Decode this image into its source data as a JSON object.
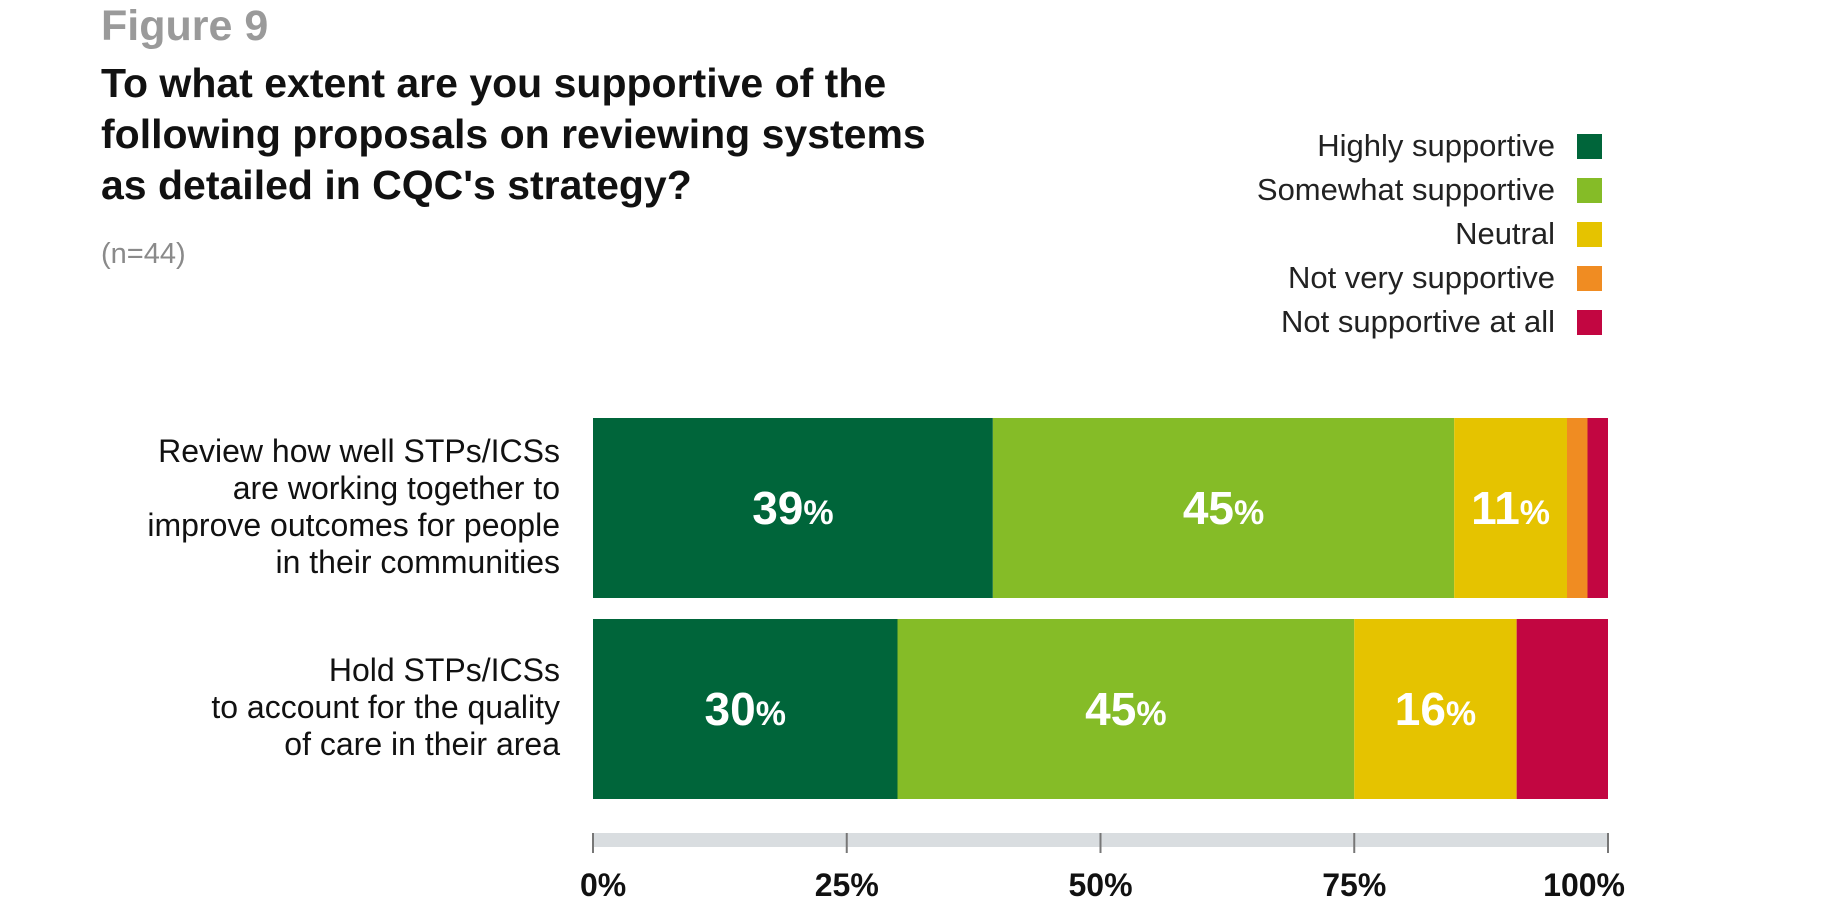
{
  "figure_label": "Figure 9",
  "title_lines": [
    "To what extent are you supportive of the",
    "following proposals on reviewing systems",
    "as detailed in CQC's strategy?"
  ],
  "sample_size": "(n=44)",
  "chart_data": {
    "type": "bar",
    "orientation": "horizontal",
    "stacked": true,
    "categories": [
      "Review how well STPs/ICSs are working together to improve outcomes for people in their communities",
      "Hold STPs/ICSs to account for the quality of care in their area"
    ],
    "category_label_lines": [
      [
        "Review how well STPs/ICSs",
        "are working together to",
        "improve outcomes for people",
        "in their communities"
      ],
      [
        "Hold STPs/ICSs",
        "to account for the quality",
        "of care in their area"
      ]
    ],
    "series": [
      {
        "name": "Highly supportive",
        "color": "#00653a",
        "values": [
          39,
          30
        ]
      },
      {
        "name": "Somewhat supportive",
        "color": "#85bc27",
        "values": [
          45,
          45
        ]
      },
      {
        "name": "Neutral",
        "color": "#e5c300",
        "values": [
          11,
          16
        ]
      },
      {
        "name": "Not very supportive",
        "color": "#f08c22",
        "values": [
          2,
          0
        ]
      },
      {
        "name": "Not supportive at all",
        "color": "#c20641",
        "values": [
          2,
          9
        ]
      }
    ],
    "data_labels": [
      [
        "39",
        "45",
        "11",
        "",
        ""
      ],
      [
        "30",
        "45",
        "16",
        "",
        ""
      ]
    ],
    "data_label_suffix": "%",
    "xlim": [
      0,
      100
    ],
    "xticks": [
      "0%",
      "25%",
      "50%",
      "75%",
      "100%"
    ],
    "grid": false,
    "legend_position": "top-right"
  }
}
